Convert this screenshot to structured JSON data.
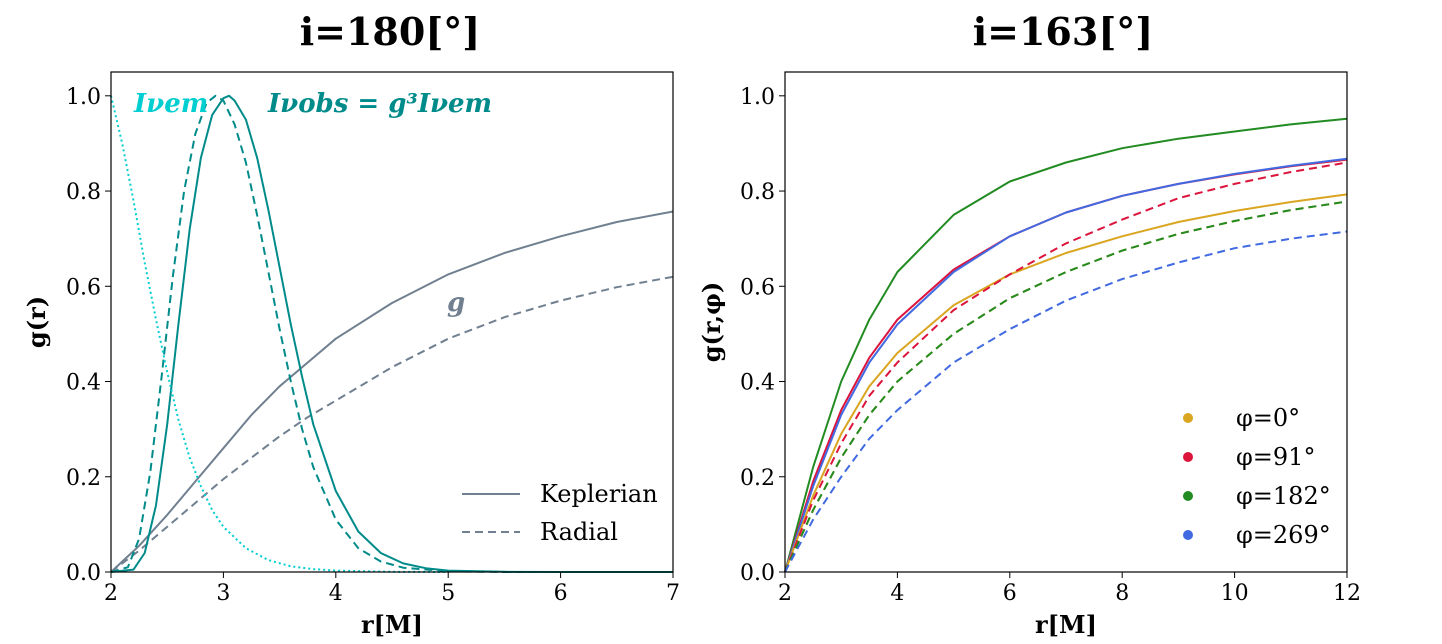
{
  "chart_data": [
    {
      "type": "line",
      "title": "i=180[°]",
      "xlabel": "r[M]",
      "ylabel": "g(r)",
      "xlim": [
        2,
        7
      ],
      "ylim": [
        0,
        1.05
      ],
      "xticks": [
        "2",
        "3",
        "4",
        "5",
        "6",
        "7"
      ],
      "yticks": [
        "0.0",
        "0.2",
        "0.4",
        "0.6",
        "0.8",
        "1.0"
      ],
      "legend": {
        "position": "bottom-right",
        "entries": [
          "Keplerian",
          "Radial"
        ]
      },
      "annotations": {
        "emitted": "Iνem",
        "observed": "Iνobs = g³Iνem",
        "g": "g"
      },
      "series": [
        {
          "name": "g Keplerian",
          "color": "#708090",
          "style": "solid",
          "x": [
            2.0,
            2.25,
            2.5,
            2.75,
            3.0,
            3.25,
            3.5,
            3.75,
            4.0,
            4.5,
            5.0,
            5.5,
            6.0,
            6.5,
            7.0
          ],
          "y": [
            0.0,
            0.055,
            0.12,
            0.19,
            0.26,
            0.33,
            0.39,
            0.44,
            0.49,
            0.565,
            0.625,
            0.67,
            0.705,
            0.735,
            0.757
          ]
        },
        {
          "name": "g Radial",
          "color": "#708090",
          "style": "dashed",
          "x": [
            2.0,
            2.25,
            2.5,
            2.75,
            3.0,
            3.25,
            3.5,
            3.75,
            4.0,
            4.5,
            5.0,
            5.5,
            6.0,
            6.5,
            7.0
          ],
          "y": [
            0.0,
            0.045,
            0.095,
            0.145,
            0.195,
            0.24,
            0.285,
            0.325,
            0.36,
            0.43,
            0.49,
            0.535,
            0.57,
            0.598,
            0.62
          ]
        },
        {
          "name": "Iobs Keplerian",
          "color": "#008b8b",
          "style": "solid",
          "x": [
            2.0,
            2.2,
            2.3,
            2.4,
            2.5,
            2.6,
            2.7,
            2.8,
            2.9,
            3.0,
            3.05,
            3.1,
            3.2,
            3.3,
            3.4,
            3.5,
            3.6,
            3.7,
            3.8,
            4.0,
            4.2,
            4.4,
            4.6,
            4.8,
            5.0,
            5.5,
            6.0,
            7.0
          ],
          "y": [
            0.0,
            0.005,
            0.04,
            0.14,
            0.31,
            0.52,
            0.72,
            0.87,
            0.96,
            0.995,
            1.0,
            0.99,
            0.95,
            0.87,
            0.76,
            0.64,
            0.52,
            0.41,
            0.31,
            0.17,
            0.085,
            0.04,
            0.018,
            0.008,
            0.003,
            0.0005,
            0.0,
            0.0
          ]
        },
        {
          "name": "Iobs Radial",
          "color": "#008b8b",
          "style": "dashed",
          "x": [
            2.0,
            2.15,
            2.25,
            2.35,
            2.45,
            2.55,
            2.65,
            2.75,
            2.85,
            2.93,
            3.0,
            3.1,
            3.2,
            3.3,
            3.4,
            3.5,
            3.6,
            3.7,
            3.8,
            4.0,
            4.2,
            4.4,
            4.6,
            5.0,
            5.5,
            7.0
          ],
          "y": [
            0.0,
            0.01,
            0.07,
            0.21,
            0.41,
            0.62,
            0.8,
            0.92,
            0.985,
            1.0,
            0.99,
            0.94,
            0.86,
            0.75,
            0.63,
            0.51,
            0.4,
            0.3,
            0.22,
            0.11,
            0.05,
            0.022,
            0.009,
            0.0015,
            0.0,
            0.0
          ]
        },
        {
          "name": "Iem",
          "color": "#00ced1",
          "style": "dotted",
          "x": [
            2.0,
            2.1,
            2.2,
            2.3,
            2.4,
            2.5,
            2.6,
            2.7,
            2.8,
            2.9,
            3.0,
            3.2,
            3.4,
            3.6,
            3.8,
            4.0,
            4.5,
            5.0
          ],
          "y": [
            1.0,
            0.9,
            0.78,
            0.65,
            0.53,
            0.42,
            0.32,
            0.24,
            0.18,
            0.13,
            0.095,
            0.05,
            0.025,
            0.012,
            0.006,
            0.003,
            0.0005,
            0.0
          ]
        }
      ]
    },
    {
      "type": "line",
      "title": "i=163[°]",
      "xlabel": "r[M]",
      "ylabel": "g(r,φ)",
      "xlim": [
        2,
        12
      ],
      "ylim": [
        0,
        1.05
      ],
      "xticks": [
        "2",
        "4",
        "6",
        "8",
        "10",
        "12"
      ],
      "yticks": [
        "0.0",
        "0.2",
        "0.4",
        "0.6",
        "0.8",
        "1.0"
      ],
      "legend": {
        "position": "bottom-right",
        "entries": [
          "φ=0°",
          "φ=91°",
          "φ=182°",
          "φ=269°"
        ]
      },
      "series": [
        {
          "name": "φ=182° Keplerian",
          "color": "#228b22",
          "style": "solid",
          "x": [
            2,
            2.5,
            3,
            3.5,
            4,
            5,
            6,
            7,
            8,
            9,
            10,
            11,
            12
          ],
          "y": [
            0.0,
            0.22,
            0.4,
            0.53,
            0.63,
            0.75,
            0.82,
            0.86,
            0.89,
            0.91,
            0.925,
            0.94,
            0.952
          ]
        },
        {
          "name": "φ=91° Keplerian",
          "color": "#dc143c",
          "style": "solid",
          "x": [
            2,
            2.5,
            3,
            3.5,
            4,
            5,
            6,
            7,
            8,
            9,
            10,
            11,
            12
          ],
          "y": [
            0.0,
            0.19,
            0.34,
            0.45,
            0.53,
            0.635,
            0.705,
            0.755,
            0.79,
            0.815,
            0.835,
            0.852,
            0.866
          ]
        },
        {
          "name": "φ=269° Keplerian",
          "color": "#4169e1",
          "style": "solid",
          "x": [
            2,
            2.5,
            3,
            3.5,
            4,
            5,
            6,
            7,
            8,
            9,
            10,
            11,
            12
          ],
          "y": [
            0.0,
            0.18,
            0.33,
            0.44,
            0.52,
            0.63,
            0.705,
            0.755,
            0.79,
            0.815,
            0.836,
            0.853,
            0.868
          ]
        },
        {
          "name": "φ=0° Keplerian",
          "color": "#daa520",
          "style": "solid",
          "x": [
            2,
            2.5,
            3,
            3.5,
            4,
            5,
            6,
            7,
            8,
            9,
            10,
            11,
            12
          ],
          "y": [
            0.0,
            0.16,
            0.29,
            0.39,
            0.46,
            0.56,
            0.625,
            0.67,
            0.705,
            0.735,
            0.758,
            0.777,
            0.793
          ]
        },
        {
          "name": "φ=91° Radial",
          "color": "#dc143c",
          "style": "dashed",
          "x": [
            2,
            2.5,
            3,
            3.5,
            4,
            5,
            6,
            7,
            8,
            9,
            10,
            11,
            12
          ],
          "y": [
            0.0,
            0.15,
            0.27,
            0.37,
            0.44,
            0.55,
            0.625,
            0.69,
            0.74,
            0.785,
            0.815,
            0.84,
            0.86
          ]
        },
        {
          "name": "φ=0° Radial",
          "color": "#daa520",
          "style": "dashed",
          "x": [
            2,
            2.5,
            3,
            3.5,
            4,
            5,
            6,
            7,
            8,
            9,
            10,
            11,
            12
          ],
          "y": [
            0.0,
            0.13,
            0.24,
            0.33,
            0.4,
            0.5,
            0.575,
            0.63,
            0.675,
            0.71,
            0.737,
            0.76,
            0.778
          ]
        },
        {
          "name": "φ=182° Radial",
          "color": "#228b22",
          "style": "dashed",
          "x": [
            2,
            2.5,
            3,
            3.5,
            4,
            5,
            6,
            7,
            8,
            9,
            10,
            11,
            12
          ],
          "y": [
            0.0,
            0.13,
            0.24,
            0.33,
            0.4,
            0.5,
            0.575,
            0.63,
            0.675,
            0.71,
            0.737,
            0.76,
            0.778
          ]
        },
        {
          "name": "φ=269° Radial",
          "color": "#4169e1",
          "style": "dashed",
          "x": [
            2,
            2.5,
            3,
            3.5,
            4,
            5,
            6,
            7,
            8,
            9,
            10,
            11,
            12
          ],
          "y": [
            0.0,
            0.11,
            0.2,
            0.28,
            0.34,
            0.44,
            0.51,
            0.57,
            0.615,
            0.65,
            0.68,
            0.7,
            0.715
          ]
        }
      ]
    }
  ]
}
